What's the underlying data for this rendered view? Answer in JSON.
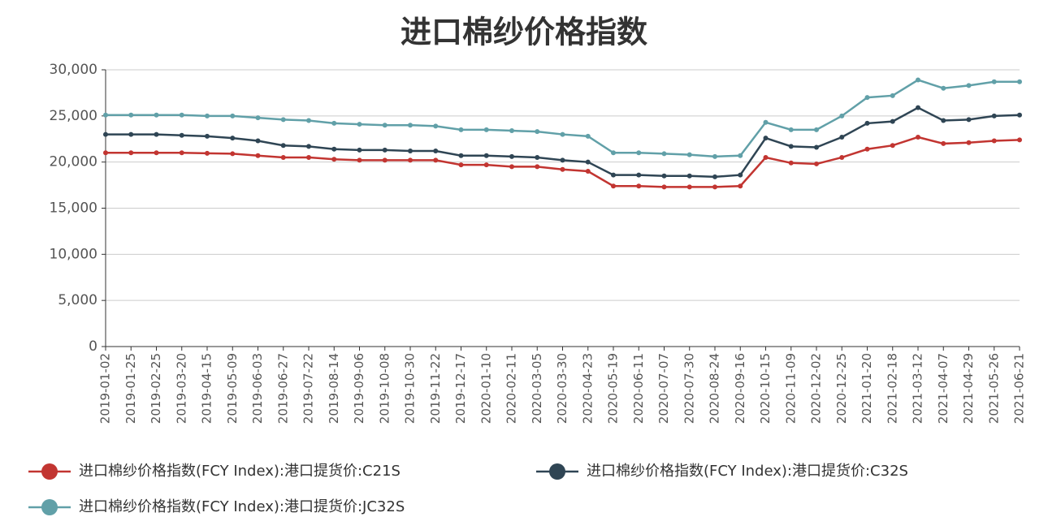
{
  "chart_data": {
    "type": "line",
    "title": "进口棉纱价格指数",
    "categories": [
      "2019-01-02",
      "2019-01-25",
      "2019-02-25",
      "2019-03-20",
      "2019-04-15",
      "2019-05-09",
      "2019-06-03",
      "2019-06-27",
      "2019-07-22",
      "2019-08-14",
      "2019-09-06",
      "2019-10-08",
      "2019-10-30",
      "2019-11-22",
      "2019-12-17",
      "2020-01-10",
      "2020-02-11",
      "2020-03-05",
      "2020-03-30",
      "2020-04-23",
      "2020-05-19",
      "2020-06-11",
      "2020-07-07",
      "2020-07-30",
      "2020-08-24",
      "2020-09-16",
      "2020-10-15",
      "2020-11-09",
      "2020-12-02",
      "2020-12-25",
      "2021-01-20",
      "2021-02-18",
      "2021-03-12",
      "2021-04-07",
      "2021-04-29",
      "2021-05-26",
      "2021-06-21"
    ],
    "series": [
      {
        "name": "进口棉纱价格指数(FCY Index):港口提货价:C21S",
        "color": "#c23531",
        "values": [
          21000,
          21000,
          21000,
          21000,
          20950,
          20900,
          20700,
          20500,
          20500,
          20300,
          20200,
          20200,
          20200,
          20200,
          19700,
          19700,
          19500,
          19500,
          19200,
          19000,
          17400,
          17400,
          17300,
          17300,
          17300,
          17400,
          20500,
          19900,
          19800,
          20500,
          21400,
          21800,
          22700,
          22000,
          22100,
          22300,
          22400
        ]
      },
      {
        "name": "进口棉纱价格指数(FCY Index):港口提货价:C32S",
        "color": "#2f4554",
        "values": [
          23000,
          23000,
          23000,
          22900,
          22800,
          22600,
          22300,
          21800,
          21700,
          21400,
          21300,
          21300,
          21200,
          21200,
          20700,
          20700,
          20600,
          20500,
          20200,
          20000,
          18600,
          18600,
          18500,
          18500,
          18400,
          18600,
          22600,
          21700,
          21600,
          22700,
          24200,
          24400,
          25900,
          24500,
          24600,
          25000,
          25100
        ]
      },
      {
        "name": "进口棉纱价格指数(FCY Index):港口提货价:JC32S",
        "color": "#61a0a8",
        "values": [
          25100,
          25100,
          25100,
          25100,
          25000,
          25000,
          24800,
          24600,
          24500,
          24200,
          24100,
          24000,
          24000,
          23900,
          23500,
          23500,
          23400,
          23300,
          23000,
          22800,
          21000,
          21000,
          20900,
          20800,
          20600,
          20700,
          24300,
          23500,
          23500,
          25000,
          27000,
          27200,
          28900,
          28000,
          28300,
          28700,
          28700
        ]
      }
    ],
    "ylim": [
      0,
      30000
    ],
    "yticks": [
      0,
      {
        "value": 5000,
        "label": "5,000"
      },
      {
        "value": 10000,
        "label": "10,000"
      },
      {
        "value": 15000,
        "label": "15,000"
      },
      {
        "value": 20000,
        "label": "20,000"
      },
      {
        "value": 25000,
        "label": "25,000"
      },
      {
        "value": 30000,
        "label": "30,000"
      }
    ],
    "grid": true,
    "legend": "bottom"
  }
}
